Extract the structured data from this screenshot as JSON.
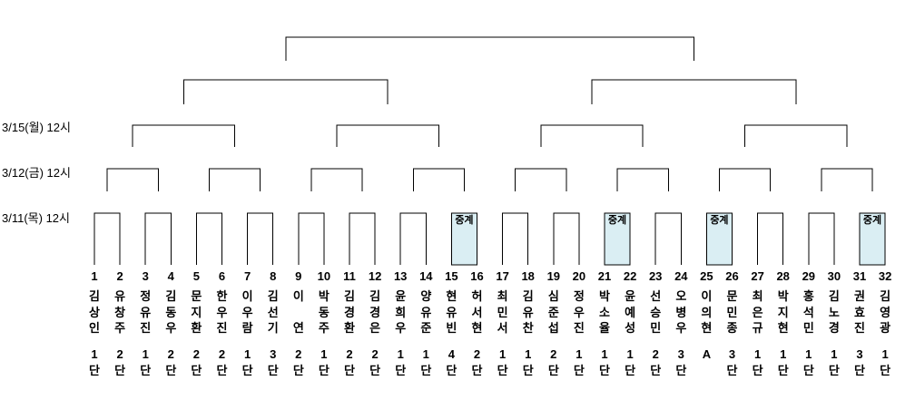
{
  "event": {
    "broadcast_label": "중계",
    "broadcast_color": "#daeef3",
    "line_color": "#000000",
    "text_color": "#000000"
  },
  "rounds": [
    {
      "label": "3/15(월) 12시"
    },
    {
      "label": "3/12(금) 12시"
    },
    {
      "label": "3/11(목) 12시"
    }
  ],
  "broadcast_pairs": [
    [
      15,
      16
    ],
    [
      21,
      22
    ],
    [
      25,
      26
    ],
    [
      31,
      32
    ]
  ],
  "players": [
    {
      "number": "1",
      "name": "김상인",
      "rank": "1단"
    },
    {
      "number": "2",
      "name": "유창주",
      "rank": "2단"
    },
    {
      "number": "3",
      "name": "정유진",
      "rank": "1단"
    },
    {
      "number": "4",
      "name": "김동우",
      "rank": "2단"
    },
    {
      "number": "5",
      "name": "문지환",
      "rank": "2단"
    },
    {
      "number": "6",
      "name": "한우진",
      "rank": "2단"
    },
    {
      "number": "7",
      "name": "이우람",
      "rank": "1단"
    },
    {
      "number": "8",
      "name": "김선기",
      "rank": "3단"
    },
    {
      "number": "9",
      "name": "이 연",
      "rank": "2단"
    },
    {
      "number": "10",
      "name": "박동주",
      "rank": "1단"
    },
    {
      "number": "11",
      "name": "김경환",
      "rank": "2단"
    },
    {
      "number": "12",
      "name": "김경은",
      "rank": "2단"
    },
    {
      "number": "13",
      "name": "윤희우",
      "rank": "1단"
    },
    {
      "number": "14",
      "name": "양유준",
      "rank": "1단"
    },
    {
      "number": "15",
      "name": "현유빈",
      "rank": "4단"
    },
    {
      "number": "16",
      "name": "허서현",
      "rank": "2단"
    },
    {
      "number": "17",
      "name": "최민서",
      "rank": "1단"
    },
    {
      "number": "18",
      "name": "김유찬",
      "rank": "1단"
    },
    {
      "number": "19",
      "name": "심준섭",
      "rank": "2단"
    },
    {
      "number": "20",
      "name": "정우진",
      "rank": "1단"
    },
    {
      "number": "21",
      "name": "박소율",
      "rank": "1단"
    },
    {
      "number": "22",
      "name": "윤예성",
      "rank": "1단"
    },
    {
      "number": "23",
      "name": "선승민",
      "rank": "2단"
    },
    {
      "number": "24",
      "name": "오병우",
      "rank": "3단"
    },
    {
      "number": "25",
      "name": "이의현",
      "rank": "A"
    },
    {
      "number": "26",
      "name": "문민종",
      "rank": "3단"
    },
    {
      "number": "27",
      "name": "최은규",
      "rank": "1단"
    },
    {
      "number": "28",
      "name": "박지현",
      "rank": "1단"
    },
    {
      "number": "29",
      "name": "홍석민",
      "rank": "1단"
    },
    {
      "number": "30",
      "name": "김노경",
      "rank": "1단"
    },
    {
      "number": "31",
      "name": "권효진",
      "rank": "3단"
    },
    {
      "number": "32",
      "name": "김영광",
      "rank": "1단"
    }
  ]
}
